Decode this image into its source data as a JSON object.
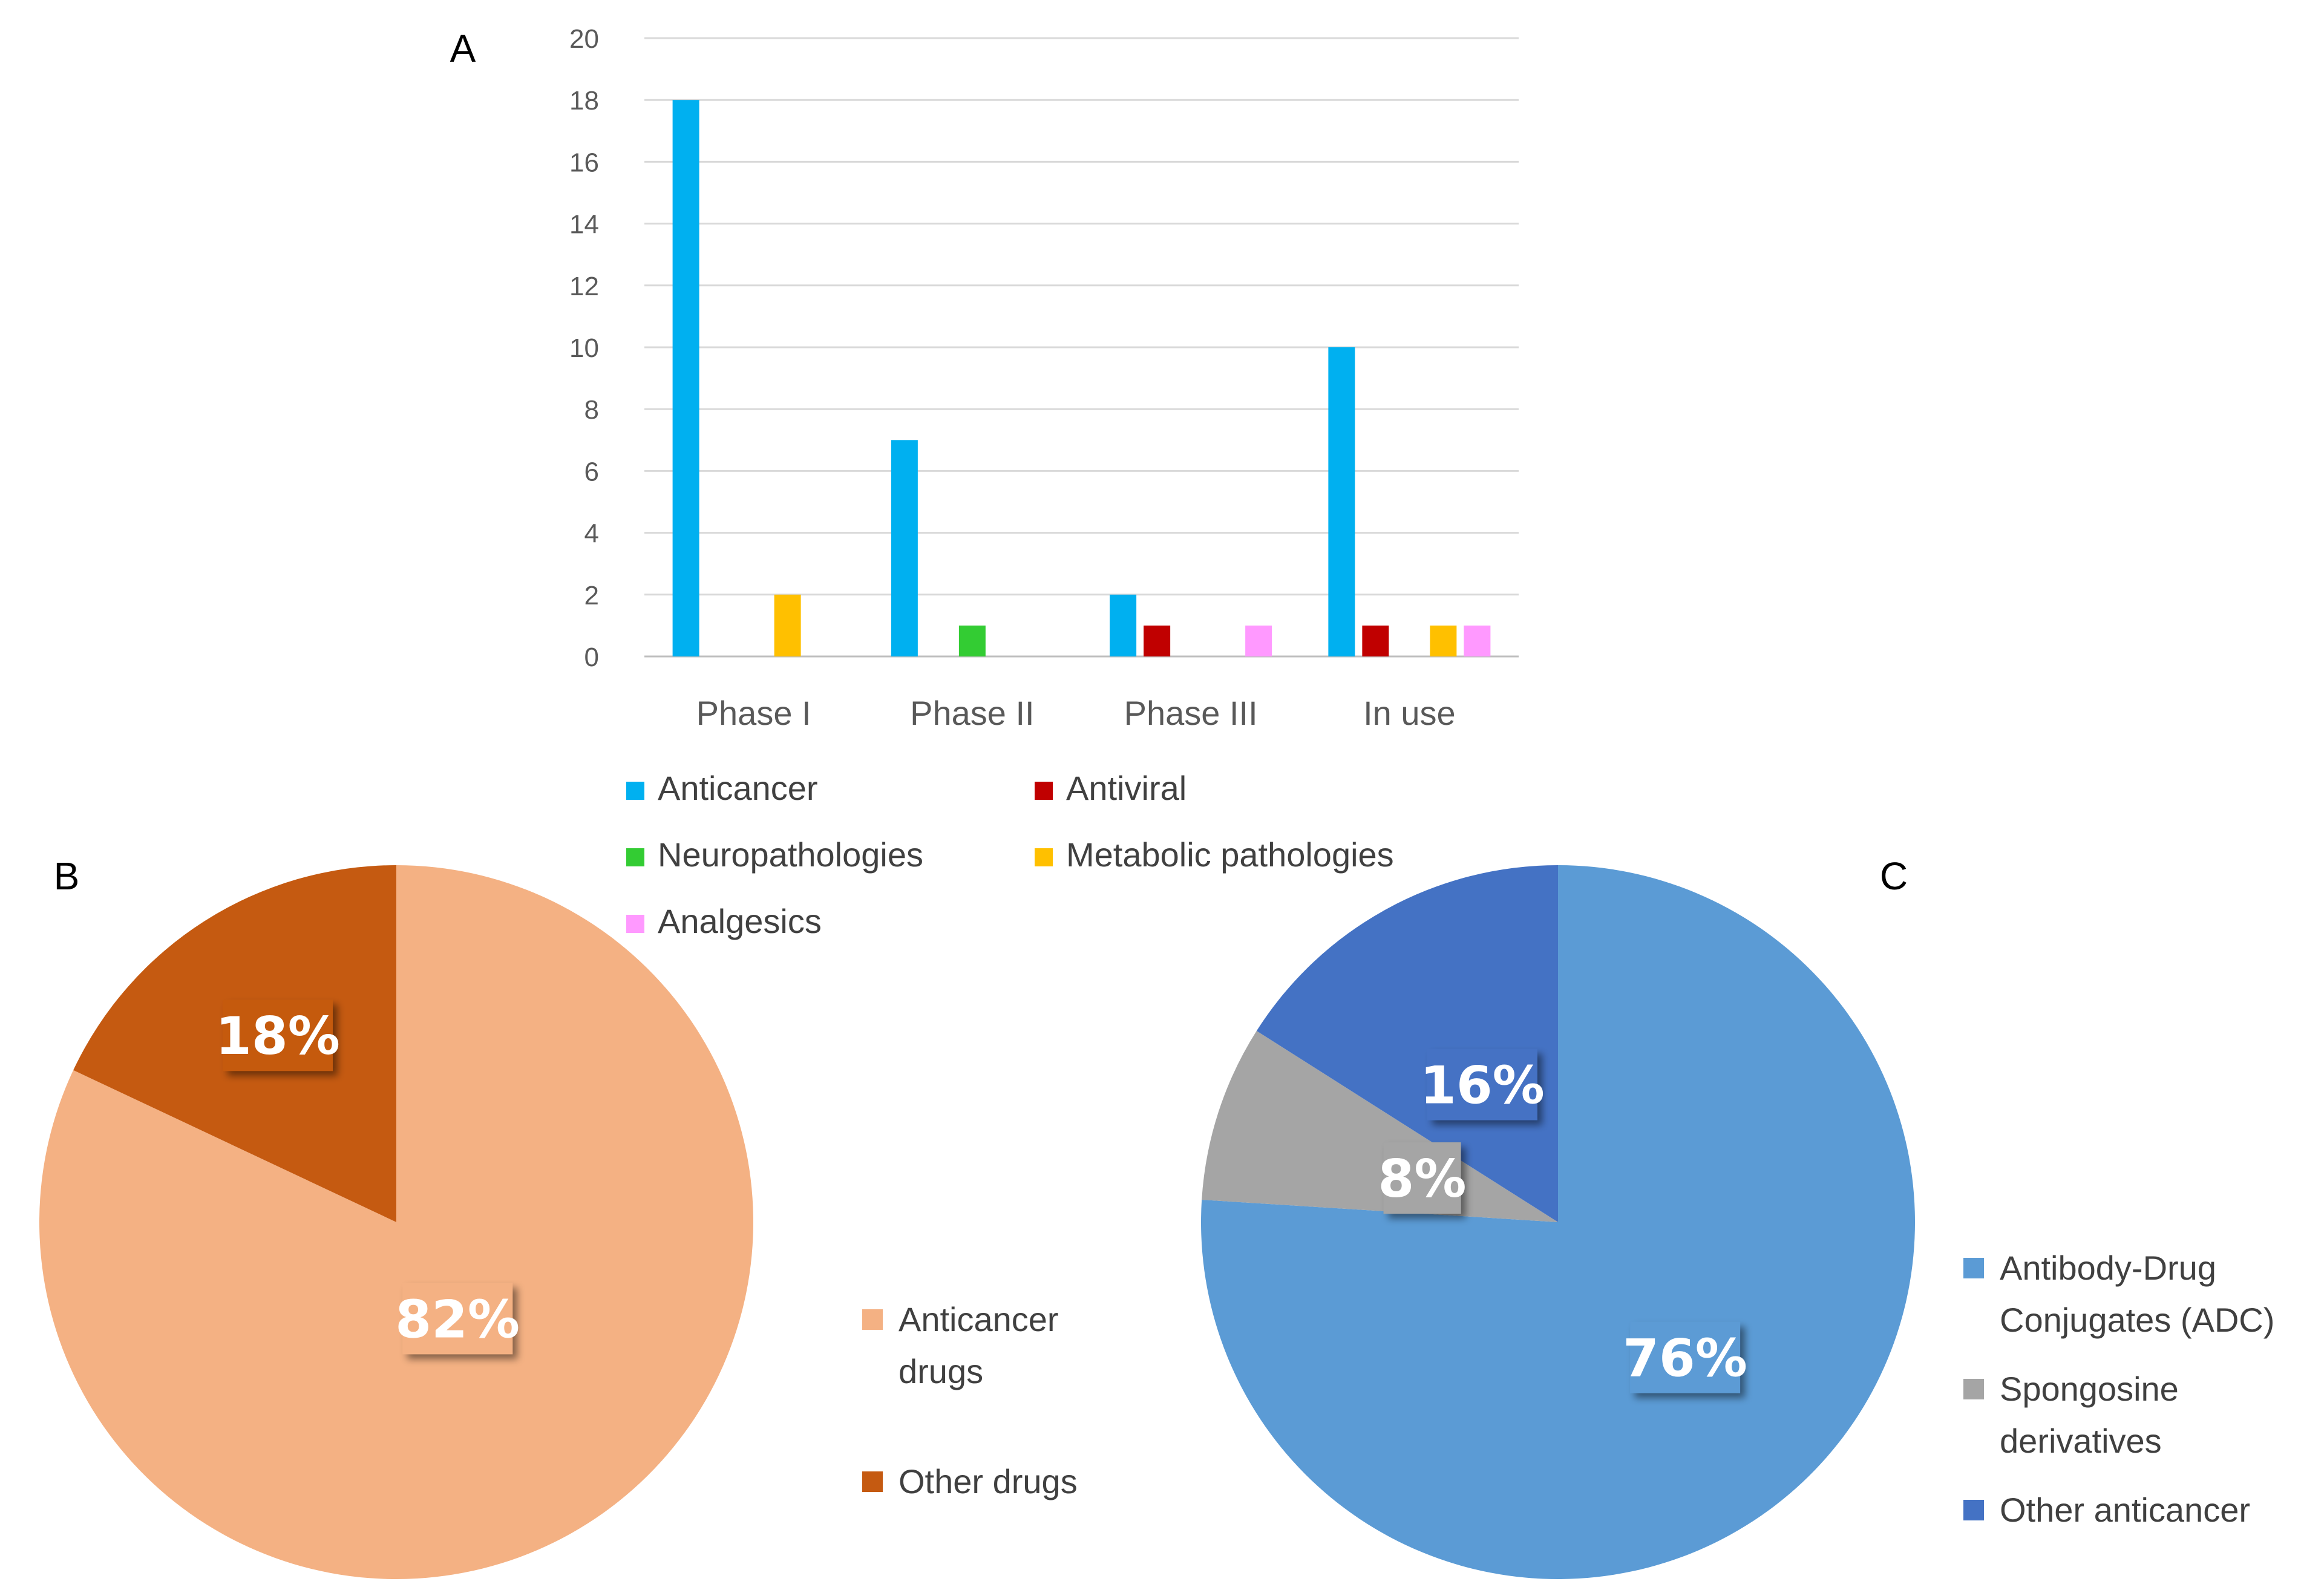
{
  "chart_data": [
    {
      "panel": "A",
      "type": "bar",
      "title": "A",
      "categories": [
        "Phase I",
        "Phase II",
        "Phase III",
        "In use"
      ],
      "ylim": [
        0,
        20
      ],
      "yticks": [
        0,
        2,
        4,
        6,
        8,
        10,
        12,
        14,
        16,
        18,
        20
      ],
      "grid": true,
      "legend_position": "bottom",
      "series": [
        {
          "name": "Anticancer",
          "color": "#00B0F0",
          "values": [
            18,
            7,
            2,
            10
          ]
        },
        {
          "name": "Antiviral",
          "color": "#C00000",
          "values": [
            0,
            0,
            1,
            1
          ]
        },
        {
          "name": "Neuropathologies",
          "color": "#33CC33",
          "values": [
            0,
            1,
            0,
            0
          ]
        },
        {
          "name": "Metabolic pathologies",
          "color": "#FFC000",
          "values": [
            2,
            0,
            0,
            1
          ]
        },
        {
          "name": "Analgesics",
          "color": "#FF99FF",
          "values": [
            0,
            0,
            1,
            1
          ]
        }
      ]
    },
    {
      "panel": "B",
      "type": "pie",
      "title": "B",
      "legend_position": "right",
      "slices": [
        {
          "name": "Anticancer drugs",
          "legend_lines": [
            "Anticancer",
            "drugs"
          ],
          "value": 82,
          "label": "82%",
          "color": "#F4B183"
        },
        {
          "name": "Other drugs",
          "legend_lines": [
            "Other drugs"
          ],
          "value": 18,
          "label": "18%",
          "color": "#C55A11"
        }
      ]
    },
    {
      "panel": "C",
      "type": "pie",
      "title": "C",
      "legend_position": "right",
      "slices": [
        {
          "name": "Antibody-Drug Conjugates (ADC)",
          "legend_lines": [
            "Antibody-Drug",
            "Conjugates (ADC)"
          ],
          "value": 76,
          "label": "76%",
          "color": "#5B9BD5"
        },
        {
          "name": "Spongosine derivatives",
          "legend_lines": [
            "Spongosine",
            "derivatives"
          ],
          "value": 8,
          "label": "8%",
          "color": "#A5A5A5"
        },
        {
          "name": "Other anticancer",
          "legend_lines": [
            "Other anticancer"
          ],
          "value": 16,
          "label": "16%",
          "color": "#4472C4"
        }
      ]
    }
  ]
}
